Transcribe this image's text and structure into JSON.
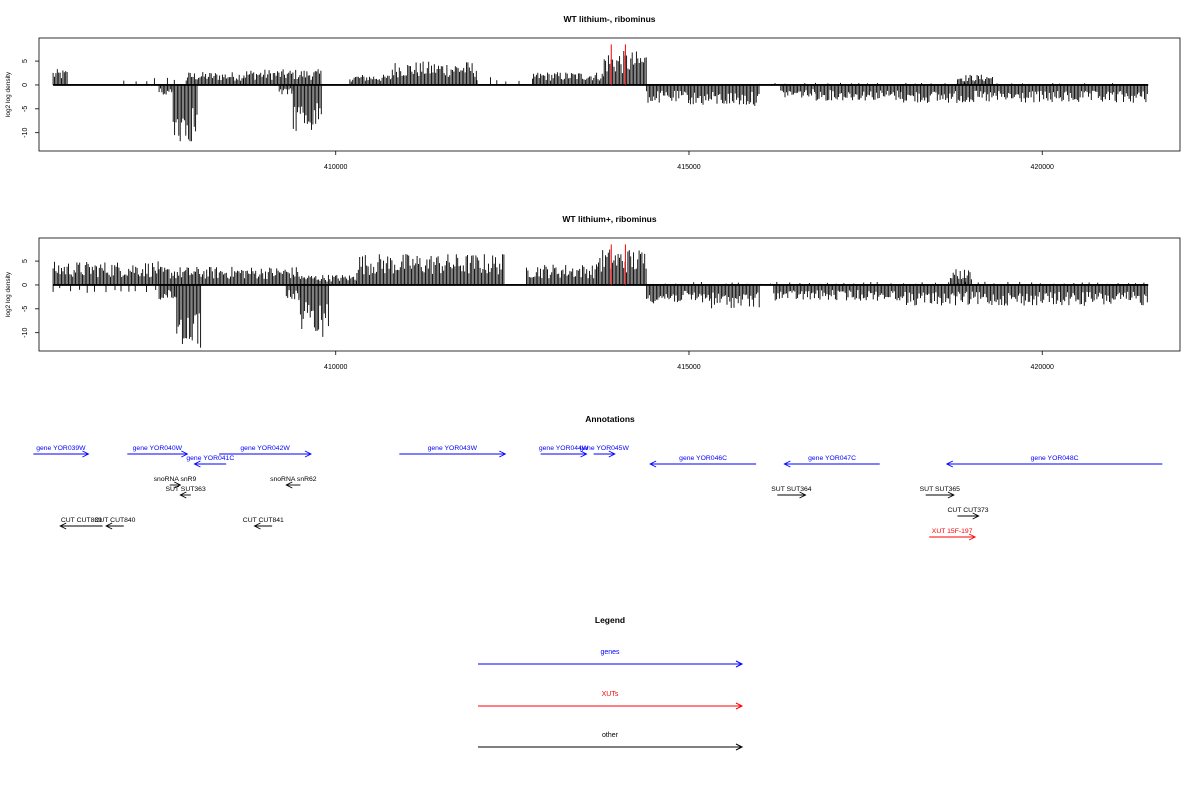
{
  "colors": {
    "gene": "#0000ff",
    "xut": "#ff0000",
    "other": "#000000",
    "highlight": "#ff0000"
  },
  "chart_data": [
    {
      "type": "bar",
      "title": "WT lithium-, ribominus",
      "ylabel": "log2 log density",
      "xlim": [
        405800,
        421950
      ],
      "ylim": [
        -13,
        9
      ],
      "x_ticks": [
        410000,
        415000,
        420000
      ],
      "x_tick_labels": [
        "410000",
        "415000",
        "420000"
      ],
      "y_ticks": [
        5,
        0,
        -5,
        -10
      ],
      "y_tick_labels": [
        "5",
        "0",
        "-5",
        "-10"
      ],
      "baseline": 0,
      "series": [
        {
          "strand": "plus",
          "segments": [
            {
              "x": [
                406000,
                406200
              ],
              "level": 3.0
            },
            {
              "x": [
                407000,
                407900
              ],
              "level": 1.5
            },
            {
              "x": [
                407900,
                408700
              ],
              "level": 2.5
            },
            {
              "x": [
                408700,
                409800
              ],
              "level": 3.0
            },
            {
              "x": [
                410200,
                410800
              ],
              "level": 2.0
            },
            {
              "x": [
                410800,
                412000
              ],
              "level": 4.5
            },
            {
              "x": [
                412000,
                412800
              ],
              "level": 1.5
            },
            {
              "x": [
                412800,
                413800
              ],
              "level": 2.5
            },
            {
              "x": [
                413800,
                414400
              ],
              "level": 6.5
            },
            {
              "x": [
                416000,
                421500
              ],
              "level": 0.4
            },
            {
              "x": [
                418800,
                419300
              ],
              "level": 2.0
            }
          ]
        },
        {
          "strand": "minus",
          "segments": [
            {
              "x": [
                407500,
                407700
              ],
              "level": -2.0
            },
            {
              "x": [
                407700,
                408050
              ],
              "level": -11.0
            },
            {
              "x": [
                409200,
                409400
              ],
              "level": -2.0
            },
            {
              "x": [
                409400,
                409800
              ],
              "level": -9.0
            },
            {
              "x": [
                414400,
                415000
              ],
              "level": -3.5
            },
            {
              "x": [
                415000,
                416000
              ],
              "level": -4.0
            },
            {
              "x": [
                416300,
                416800
              ],
              "level": -2.5
            },
            {
              "x": [
                416800,
                418000
              ],
              "level": -3.0
            },
            {
              "x": [
                418000,
                421500
              ],
              "level": -3.5
            }
          ]
        }
      ],
      "highlights": [
        {
          "x": 413900,
          "y": 8.5
        },
        {
          "x": 414100,
          "y": 8.5
        }
      ]
    },
    {
      "type": "bar",
      "title": "WT lithium+, ribominus",
      "ylabel": "log2 log density",
      "xlim": [
        405800,
        421950
      ],
      "ylim": [
        -13,
        9
      ],
      "x_ticks": [
        410000,
        415000,
        420000
      ],
      "x_tick_labels": [
        "410000",
        "415000",
        "420000"
      ],
      "y_ticks": [
        5,
        0,
        -5,
        -10
      ],
      "y_tick_labels": [
        "5",
        "0",
        "-5",
        "-10"
      ],
      "baseline": 0,
      "series": [
        {
          "strand": "plus",
          "segments": [
            {
              "x": [
                406000,
                407500
              ],
              "level": 4.5
            },
            {
              "x": [
                407500,
                409500
              ],
              "level": 3.5
            },
            {
              "x": [
                409500,
                410300
              ],
              "level": 2.0
            },
            {
              "x": [
                410300,
                412400
              ],
              "level": 6.0
            },
            {
              "x": [
                412700,
                413700
              ],
              "level": 4.0
            },
            {
              "x": [
                413700,
                414400
              ],
              "level": 7.0
            },
            {
              "x": [
                414400,
                421500
              ],
              "level": 0.6
            },
            {
              "x": [
                418700,
                419000
              ],
              "level": 3.0
            }
          ]
        },
        {
          "strand": "minus",
          "segments": [
            {
              "x": [
                406000,
                407500
              ],
              "level": -1.5
            },
            {
              "x": [
                407500,
                407750
              ],
              "level": -3.0
            },
            {
              "x": [
                407750,
                408100
              ],
              "level": -12.0
            },
            {
              "x": [
                409300,
                409500
              ],
              "level": -3.0
            },
            {
              "x": [
                409500,
                409900
              ],
              "level": -10.0
            },
            {
              "x": [
                414400,
                415300
              ],
              "level": -3.5
            },
            {
              "x": [
                415300,
                416000
              ],
              "level": -4.5
            },
            {
              "x": [
                416200,
                418000
              ],
              "level": -3.0
            },
            {
              "x": [
                418000,
                421500
              ],
              "level": -4.0
            }
          ]
        }
      ],
      "highlights": [
        {
          "x": 413900,
          "y": 8.5
        },
        {
          "x": 414100,
          "y": 8.5
        }
      ]
    }
  ],
  "annotations": {
    "title": "Annotations",
    "features": [
      {
        "label": "gene YOR039W",
        "x0": 405720,
        "x1": 406500,
        "row": 0,
        "strand": "+",
        "kind": "gene"
      },
      {
        "label": "gene YOR040W",
        "x0": 407050,
        "x1": 407900,
        "row": 0,
        "strand": "+",
        "kind": "gene"
      },
      {
        "label": "gene YOR041C",
        "x0": 408000,
        "x1": 408450,
        "row": 1,
        "strand": "-",
        "kind": "gene"
      },
      {
        "label": "gene YOR042W",
        "x0": 408350,
        "x1": 409650,
        "row": 0,
        "strand": "+",
        "kind": "gene"
      },
      {
        "label": "gene YOR043W",
        "x0": 410900,
        "x1": 412400,
        "row": 0,
        "strand": "+",
        "kind": "gene"
      },
      {
        "label": "gene YOR044W",
        "x0": 412900,
        "x1": 413550,
        "row": 0,
        "strand": "+",
        "kind": "gene"
      },
      {
        "label": "gene YOR045W",
        "x0": 413650,
        "x1": 413950,
        "row": 0,
        "strand": "+",
        "kind": "gene"
      },
      {
        "label": "gene YOR046C",
        "x0": 414450,
        "x1": 415950,
        "row": 1,
        "strand": "-",
        "kind": "gene"
      },
      {
        "label": "gene YOR047C",
        "x0": 416350,
        "x1": 417700,
        "row": 1,
        "strand": "-",
        "kind": "gene"
      },
      {
        "label": "gene YOR048C",
        "x0": 418650,
        "x1": 421700,
        "row": 1,
        "strand": "-",
        "kind": "gene"
      },
      {
        "label": "snoRNA snR9",
        "x0": 407650,
        "x1": 407800,
        "row": 2,
        "strand": "+",
        "kind": "other"
      },
      {
        "label": "snoRNA snR62",
        "x0": 409300,
        "x1": 409500,
        "row": 2,
        "strand": "-",
        "kind": "other"
      },
      {
        "label": "SUT SUT363",
        "x0": 407800,
        "x1": 407950,
        "row": 3,
        "strand": "-",
        "kind": "other"
      },
      {
        "label": "SUT SUT364",
        "x0": 416250,
        "x1": 416650,
        "row": 3,
        "strand": "+",
        "kind": "other"
      },
      {
        "label": "SUT SUT365",
        "x0": 418350,
        "x1": 418750,
        "row": 3,
        "strand": "+",
        "kind": "other"
      },
      {
        "label": "CUT CUT373",
        "x0": 418800,
        "x1": 419100,
        "row": 4,
        "strand": "+",
        "kind": "other"
      },
      {
        "label": "CUT CUT839",
        "x0": 406100,
        "x1": 406700,
        "row": 5,
        "strand": "-",
        "kind": "other"
      },
      {
        "label": "CUT CUT840",
        "x0": 406750,
        "x1": 407000,
        "row": 5,
        "strand": "-",
        "kind": "other"
      },
      {
        "label": "CUT CUT841",
        "x0": 408850,
        "x1": 409100,
        "row": 5,
        "strand": "-",
        "kind": "other"
      },
      {
        "label": "XUT 15F-197",
        "x0": 418400,
        "x1": 419050,
        "row": 6,
        "strand": "+",
        "kind": "xut"
      }
    ]
  },
  "legend": {
    "title": "Legend",
    "items": [
      {
        "label": "genes",
        "kind": "gene"
      },
      {
        "label": "XUTs",
        "kind": "xut"
      },
      {
        "label": "other",
        "kind": "other"
      }
    ]
  }
}
